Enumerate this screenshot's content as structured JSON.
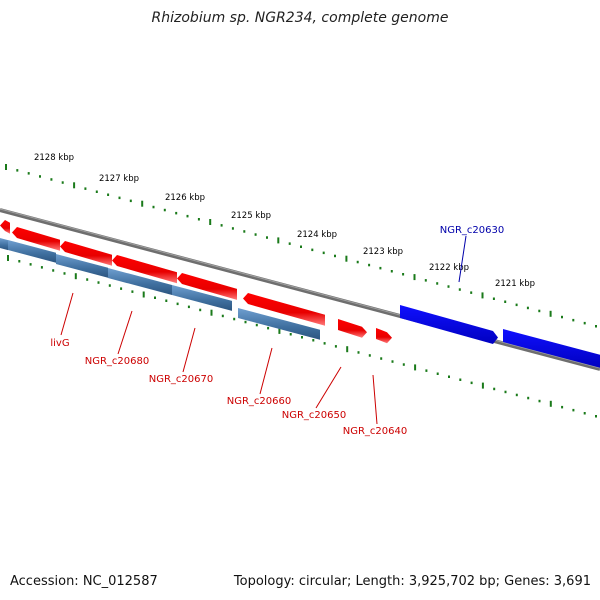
{
  "title": "Rhizobium sp. NGR234, complete genome",
  "footer": {
    "accession": "Accession: NC_012587",
    "summary": "Topology: circular; Length: 3,925,702 bp; Genes: 3,691"
  },
  "colors": {
    "forward_gene": "#ff0000",
    "reverse_gene": "#4a7fb5",
    "highlighted_gene": "#0000ee",
    "backbone": "#777777",
    "scale_ticks": "#1a7a1a",
    "gene_labels": "#cc0000",
    "highlighted_label": "#0000aa"
  },
  "scale": {
    "ticks": [
      {
        "label": "2128 kbp"
      },
      {
        "label": "2127 kbp"
      },
      {
        "label": "2126 kbp"
      },
      {
        "label": "2125 kbp"
      },
      {
        "label": "2124 kbp"
      },
      {
        "label": "2123 kbp"
      },
      {
        "label": "2122 kbp"
      },
      {
        "label": "2121 kbp"
      }
    ]
  },
  "genes": [
    {
      "name": "livG",
      "strand": "reverse"
    },
    {
      "name": "NGR_c20680",
      "strand": "reverse"
    },
    {
      "name": "NGR_c20670",
      "strand": "reverse"
    },
    {
      "name": "NGR_c20660",
      "strand": "reverse"
    },
    {
      "name": "NGR_c20650",
      "strand": "forward"
    },
    {
      "name": "NGR_c20640",
      "strand": "forward"
    },
    {
      "name": "NGR_c20630",
      "strand": "forward",
      "highlighted": true
    }
  ]
}
